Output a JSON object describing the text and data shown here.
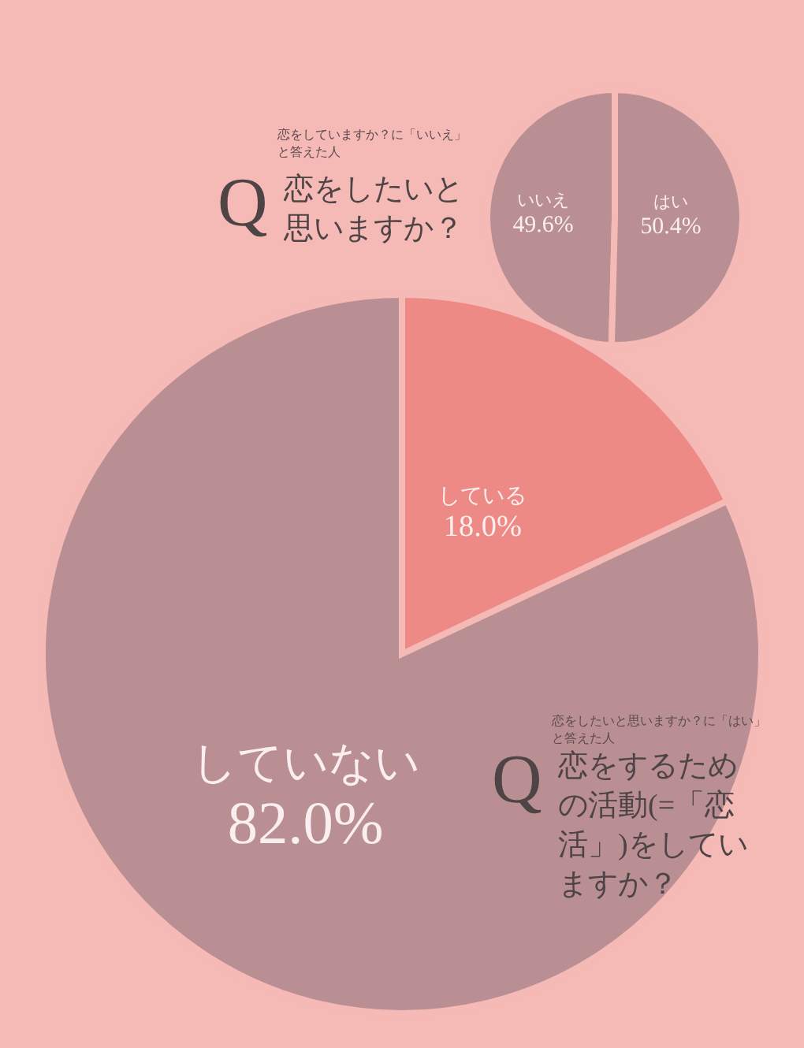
{
  "chart_data": [
    {
      "type": "pie",
      "subtitle": "恋をしていますか？に「いいえ」と答えた人",
      "title": "恋をしたいと思いますか？",
      "annotations": [
        "Q"
      ],
      "categories": [
        "いいえ",
        "はい"
      ],
      "values": [
        49.6,
        50.4
      ],
      "value_labels": [
        "49.6%",
        "50.4%"
      ],
      "colors": [
        "#b98f94",
        "#b98f94"
      ]
    },
    {
      "type": "pie",
      "subtitle": "恋をしたいと思いますか？に「はい」と答えた人",
      "title": "恋をするための活動(=「恋活」)をしていますか？",
      "annotations": [
        "Q"
      ],
      "categories": [
        "している",
        "していない"
      ],
      "values": [
        18.0,
        82.0
      ],
      "value_labels": [
        "18.0%",
        "82.0%"
      ],
      "colors": [
        "#ee8a86",
        "#b98f94"
      ]
    }
  ]
}
